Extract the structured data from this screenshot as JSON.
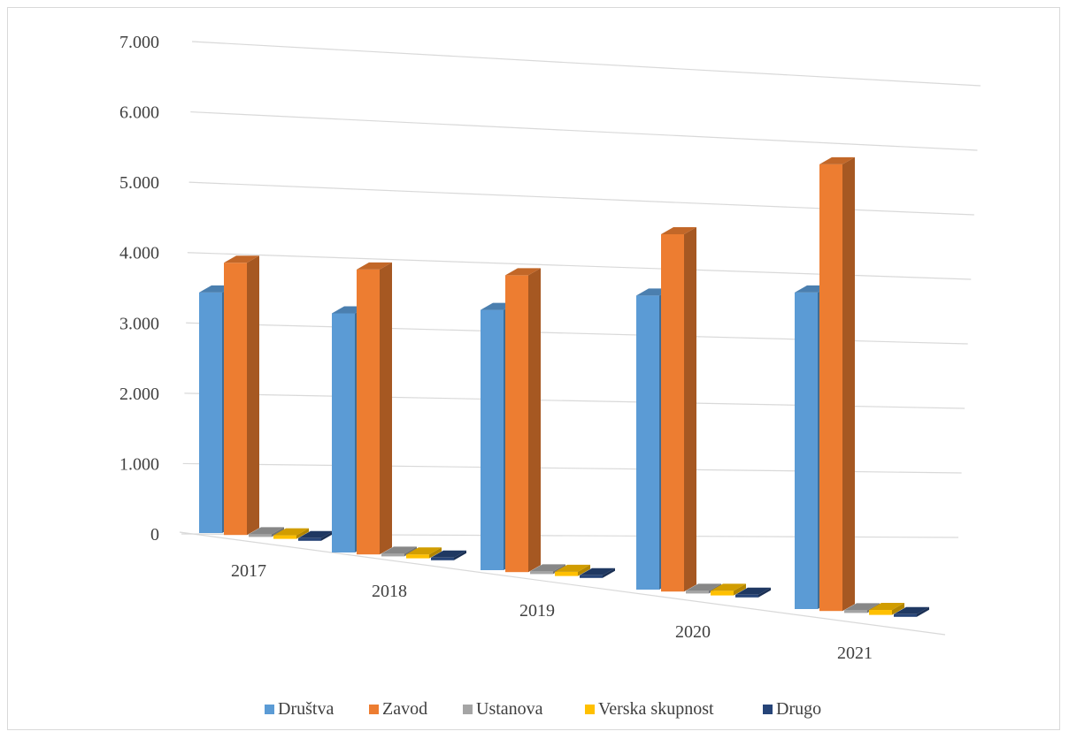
{
  "chart_data": {
    "type": "bar",
    "categories": [
      "2017",
      "2018",
      "2019",
      "2020",
      "2021"
    ],
    "series": [
      {
        "name": "Društva",
        "color": "#5b9bd5",
        "values": [
          3420,
          3400,
          3700,
          4180,
          4500
        ]
      },
      {
        "name": "Zavod",
        "color": "#ed7d31",
        "values": [
          3870,
          4050,
          4220,
          5080,
          6350
        ]
      },
      {
        "name": "Ustanova",
        "color": "#a5a5a5",
        "values": [
          25,
          25,
          25,
          25,
          25
        ]
      },
      {
        "name": "Verska skupnost",
        "color": "#ffc000",
        "values": [
          50,
          55,
          60,
          65,
          70
        ]
      },
      {
        "name": "Drugo",
        "color": "#264478",
        "values": [
          10,
          10,
          10,
          10,
          10
        ]
      }
    ],
    "y_ticks": [
      "0",
      "1.000",
      "2.000",
      "3.000",
      "4.000",
      "5.000",
      "6.000",
      "7.000"
    ],
    "ylim": [
      0,
      7000
    ],
    "grid": true,
    "legend_position": "bottom",
    "title": "",
    "xlabel": "",
    "ylabel": ""
  }
}
